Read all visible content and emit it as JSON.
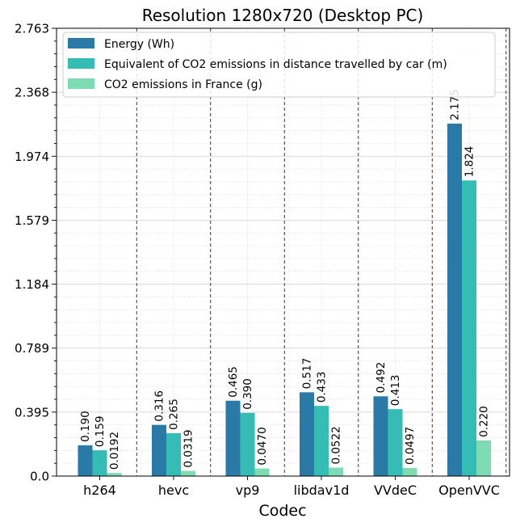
{
  "chart_data": {
    "type": "bar",
    "title": "Resolution 1280x720 (Desktop PC)",
    "xlabel": "Codec",
    "ylabel": "",
    "categories": [
      "h264",
      "hevc",
      "vp9",
      "libdav1d",
      "VVdeC",
      "OpenVVC"
    ],
    "series": [
      {
        "name": "Energy (Wh)",
        "color": "#2a7aa8",
        "values": [
          0.19,
          0.316,
          0.465,
          0.517,
          0.492,
          2.175
        ],
        "labels": [
          "0.190",
          "0.316",
          "0.465",
          "0.517",
          "0.492",
          "2.175"
        ]
      },
      {
        "name": "Equivalent of CO2 emissions in distance travelled by car (m)",
        "color": "#35bdb5",
        "values": [
          0.159,
          0.265,
          0.39,
          0.433,
          0.413,
          1.824
        ],
        "labels": [
          "0.159",
          "0.265",
          "0.390",
          "0.433",
          "0.413",
          "1.824"
        ]
      },
      {
        "name": "CO2 emissions in France (g)",
        "color": "#7ddcb4",
        "values": [
          0.0192,
          0.0319,
          0.047,
          0.0522,
          0.0497,
          0.22
        ],
        "labels": [
          "0.0192",
          "0.0319",
          "0.0470",
          "0.0522",
          "0.0497",
          "0.220"
        ]
      }
    ],
    "yticks": [
      "0.0",
      "0.395",
      "0.789",
      "1.184",
      "1.579",
      "1.974",
      "2.368",
      "2.763"
    ],
    "ylim": [
      0,
      2.763
    ],
    "grid": true,
    "legend_position": "top-left"
  }
}
